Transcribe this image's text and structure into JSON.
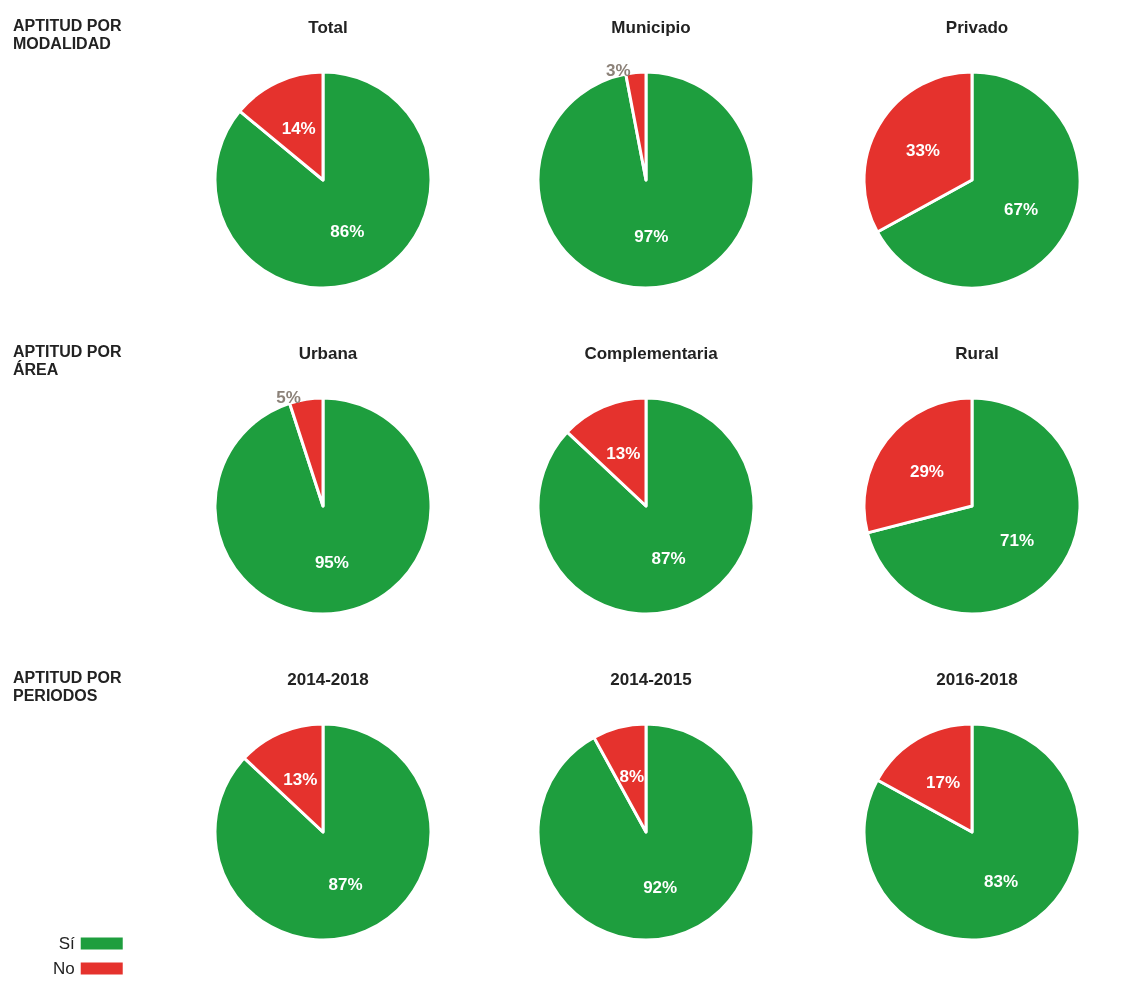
{
  "chart_data": [
    {
      "type": "pie",
      "title": "Total",
      "annotations": [
        "APTITUD POR MODALIDAD"
      ],
      "categories": [
        null,
        null
      ],
      "values": [
        86,
        14
      ],
      "value_labels": [
        "86%",
        "14%"
      ],
      "colors": [
        "#1e9e3e",
        "#e5322d"
      ]
    },
    {
      "type": "pie",
      "title": "Municipio",
      "categories": [
        null,
        null
      ],
      "values": [
        97,
        3
      ],
      "value_labels": [
        "97%",
        "3%"
      ],
      "colors": [
        "#1e9e3e",
        "#e5322d"
      ]
    },
    {
      "type": "pie",
      "title": "Privado",
      "categories": [
        null,
        null
      ],
      "values": [
        67,
        33
      ],
      "value_labels": [
        "67%",
        "33%"
      ],
      "colors": [
        "#1e9e3e",
        "#e5322d"
      ]
    },
    {
      "type": "pie",
      "title": "Urbana",
      "annotations": [
        "APTITUD POR ÁREA"
      ],
      "categories": [
        null,
        null
      ],
      "values": [
        95,
        5
      ],
      "value_labels": [
        "95%",
        "5%"
      ],
      "colors": [
        "#1e9e3e",
        "#e5322d"
      ]
    },
    {
      "type": "pie",
      "title": "Complementaria",
      "categories": [
        null,
        null
      ],
      "values": [
        87,
        13
      ],
      "value_labels": [
        "87%",
        "13%"
      ],
      "colors": [
        "#1e9e3e",
        "#e5322d"
      ]
    },
    {
      "type": "pie",
      "title": "Rural",
      "categories": [
        null,
        null
      ],
      "values": [
        71,
        29
      ],
      "value_labels": [
        "71%",
        "29%"
      ],
      "colors": [
        "#1e9e3e",
        "#e5322d"
      ]
    },
    {
      "type": "pie",
      "title": "2014-2018",
      "annotations": [
        "APTITUD POR PERIODOS"
      ],
      "legend": "bottom left",
      "categories": [
        "Sí",
        "No"
      ],
      "values": [
        87,
        13
      ],
      "value_labels": [
        "87%",
        "13%"
      ],
      "colors": [
        "#1e9e3e",
        "#e5322d"
      ]
    },
    {
      "type": "pie",
      "title": "2014-2015",
      "categories": [
        null,
        null
      ],
      "values": [
        92,
        8
      ],
      "value_labels": [
        "92%",
        "8%"
      ],
      "colors": [
        "#1e9e3e",
        "#e5322d"
      ]
    },
    {
      "type": "pie",
      "title": "2016-2018",
      "categories": [
        null,
        null
      ],
      "values": [
        83,
        17
      ],
      "value_labels": [
        "83%",
        "17%"
      ],
      "colors": [
        "#1e9e3e",
        "#e5322d"
      ]
    }
  ]
}
